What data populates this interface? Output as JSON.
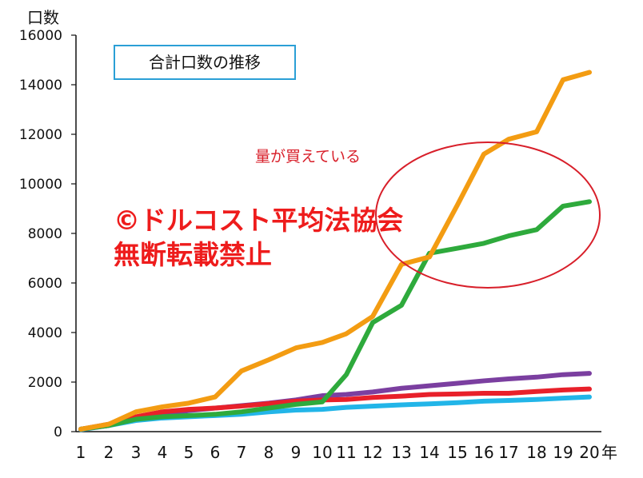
{
  "chart_data": {
    "type": "line",
    "title": "合計口数の推移",
    "ylabel": "口数",
    "xlabel": "年",
    "ylim": [
      0,
      16000
    ],
    "yticks": [
      0,
      2000,
      4000,
      6000,
      8000,
      10000,
      12000,
      14000,
      16000
    ],
    "x": [
      1,
      2,
      3,
      4,
      5,
      6,
      7,
      8,
      9,
      10,
      11,
      12,
      13,
      14,
      15,
      16,
      17,
      18,
      19,
      20
    ],
    "grid": false,
    "legend": "none",
    "series": [
      {
        "color": "#f39c12",
        "values": [
          100,
          300,
          800,
          1000,
          1150,
          1400,
          2450,
          2900,
          3380,
          3600,
          3950,
          4650,
          6750,
          7050,
          9150,
          11200,
          11800,
          12100,
          14200,
          14500
        ]
      },
      {
        "color": "#2eaa3c",
        "values": [
          100,
          250,
          500,
          600,
          650,
          700,
          800,
          950,
          1100,
          1200,
          2300,
          4400,
          5100,
          7200,
          7400,
          7600,
          7900,
          8150,
          9100,
          9280
        ]
      },
      {
        "color": "#7b3fa0",
        "values": [
          100,
          250,
          550,
          700,
          850,
          950,
          1050,
          1150,
          1280,
          1450,
          1500,
          1600,
          1750,
          1850,
          1950,
          2050,
          2130,
          2200,
          2300,
          2350
        ]
      },
      {
        "color": "#e8202a",
        "values": [
          100,
          300,
          600,
          800,
          900,
          950,
          1030,
          1130,
          1230,
          1280,
          1300,
          1380,
          1430,
          1500,
          1520,
          1550,
          1550,
          1620,
          1680,
          1720
        ]
      },
      {
        "color": "#22b5e8",
        "values": [
          80,
          250,
          450,
          550,
          600,
          650,
          700,
          800,
          870,
          900,
          980,
          1030,
          1080,
          1120,
          1170,
          1230,
          1260,
          1300,
          1350,
          1400
        ]
      }
    ],
    "annotations": [
      {
        "text": "量が買えている",
        "color": "#d81f2a",
        "shape": "ellipse",
        "ellipse_center_x": 14,
        "ellipse_center_y": 8800
      }
    ],
    "watermark": [
      "©ドルコスト平均法協会",
      "無断転載禁止"
    ]
  },
  "ui": {
    "title_box_border": "#2b9fd6",
    "axis_color": "#111111",
    "ellipse_color": "#d81f2a"
  }
}
